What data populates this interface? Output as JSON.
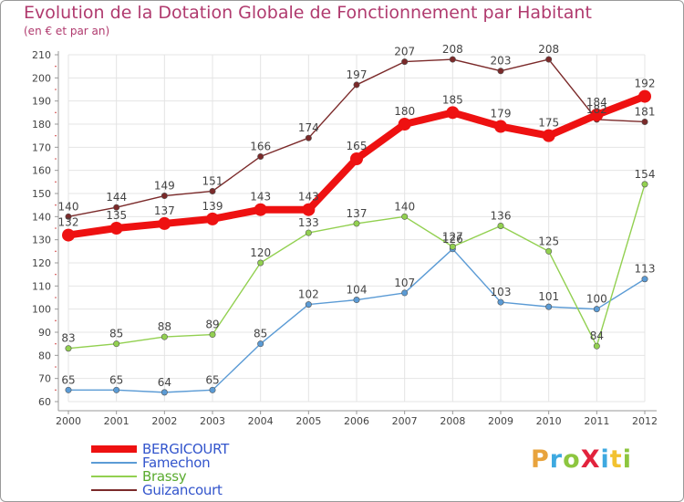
{
  "title": "Evolution de la Dotation Globale de Fonctionnement par Habitant",
  "subtitle": "(en € et par an)",
  "logo": {
    "text": "ProXiti",
    "letter_colors": [
      "#e8a33d",
      "#3ea9e0",
      "#8dc63f",
      "#e2233d",
      "#3ea9e0",
      "#f2c230",
      "#8dc63f"
    ]
  },
  "chart_data": {
    "type": "line",
    "x": [
      "2000",
      "2001",
      "2002",
      "2003",
      "2004",
      "2005",
      "2006",
      "2007",
      "2008",
      "2009",
      "2010",
      "2011",
      "2012"
    ],
    "ylim": [
      60,
      210
    ],
    "yticks": [
      60,
      70,
      80,
      90,
      100,
      110,
      120,
      130,
      140,
      150,
      160,
      170,
      180,
      190,
      200,
      210
    ],
    "grid": true,
    "legend_position": "bottom-left",
    "series": [
      {
        "name": "BERGICOURT",
        "color": "#ee1111",
        "values": [
          132,
          135,
          137,
          139,
          143,
          143,
          165,
          180,
          185,
          179,
          175,
          184,
          192
        ],
        "labels": [
          "132",
          "135",
          "137",
          "139",
          "143",
          "143",
          "165",
          "180",
          "185",
          "179",
          "175",
          "184",
          "192"
        ]
      },
      {
        "name": "Famechon",
        "color": "#5b9bd5",
        "values": [
          65,
          65,
          64,
          65,
          85,
          102,
          104,
          107,
          126,
          103,
          101,
          100,
          113
        ],
        "labels": [
          "65",
          "65",
          "64",
          "65",
          "85",
          "102",
          "104",
          "107",
          "126",
          "103",
          "101",
          "100",
          "113"
        ]
      },
      {
        "name": "Brassy",
        "color": "#92d050",
        "values": [
          83,
          85,
          88,
          89,
          120,
          133,
          137,
          140,
          127,
          136,
          125,
          84,
          154
        ],
        "labels": [
          "83",
          "85",
          "88",
          "89",
          "120",
          "133",
          "137",
          "140",
          "127",
          "136",
          "125",
          "84",
          "154"
        ]
      },
      {
        "name": "Guizancourt",
        "color": "#7b2a2a",
        "values": [
          140,
          144,
          149,
          151,
          166,
          174,
          197,
          207,
          208,
          203,
          208,
          182,
          181
        ],
        "labels": [
          "140",
          "144",
          "149",
          "151",
          "166",
          "174",
          "197",
          "207",
          "208",
          "203",
          "208",
          "182",
          "181"
        ]
      }
    ]
  }
}
